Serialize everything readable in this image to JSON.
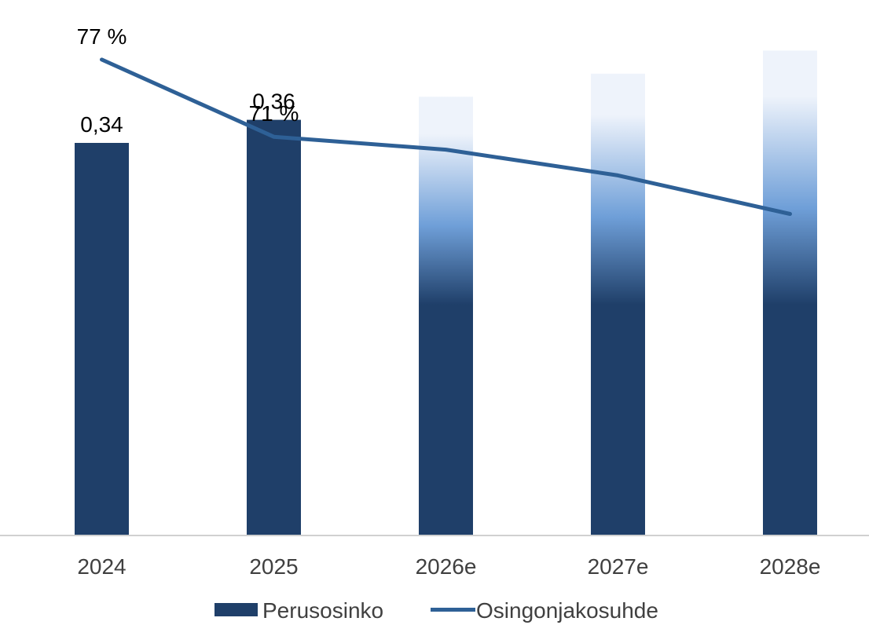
{
  "chart_data": {
    "type": "bar",
    "categories": [
      "2024",
      "2025",
      "2026e",
      "2027e",
      "2028e"
    ],
    "series": [
      {
        "name": "Perusosinko",
        "kind": "bar",
        "values": [
          0.34,
          0.36,
          0.38,
          0.4,
          0.42
        ],
        "data_labels": [
          "0,34",
          "0,36",
          "",
          "",
          ""
        ],
        "estimate": [
          false,
          false,
          true,
          true,
          true
        ]
      },
      {
        "name": "Osingonjakosuhde",
        "kind": "line",
        "values": [
          77,
          71,
          70,
          68,
          65
        ],
        "data_labels": [
          "77 %",
          "71 %",
          "",
          "",
          ""
        ]
      }
    ],
    "title": "",
    "xlabel": "",
    "ylabel": "",
    "ylim": [
      0,
      0.44
    ],
    "y2lim": [
      40,
      79.5
    ],
    "grid": false,
    "legend_position": "bottom",
    "colors": {
      "bar": "#1f3f69",
      "line": "#2e6096",
      "gradient_light": "#eef3fb",
      "gradient_mid": "#6f9fd8",
      "axis": "#d0d0d0"
    }
  }
}
